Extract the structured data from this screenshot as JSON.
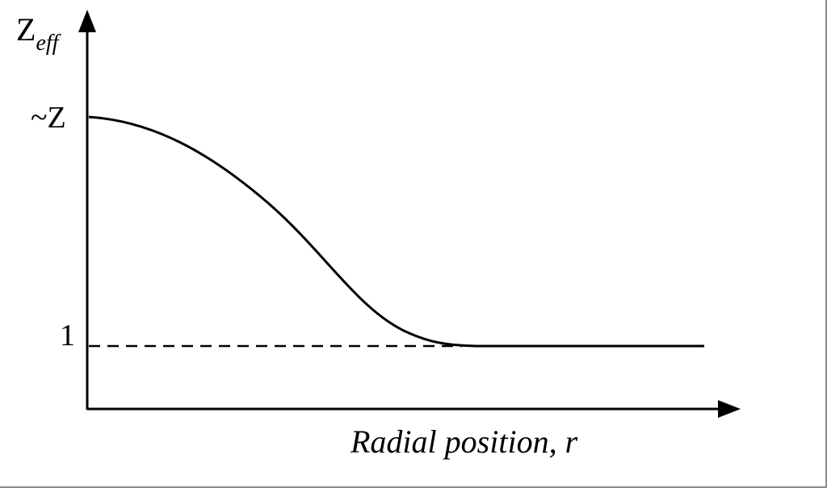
{
  "diagram": {
    "y_axis_symbol": "Z",
    "y_axis_subscript": "eff",
    "x_axis_label": "Radial position, r",
    "y_tick_high": "~Z",
    "y_tick_low": "1"
  },
  "colors": {
    "line": "#000000",
    "background": "#ffffff",
    "frame": "#8a8a8a"
  }
}
